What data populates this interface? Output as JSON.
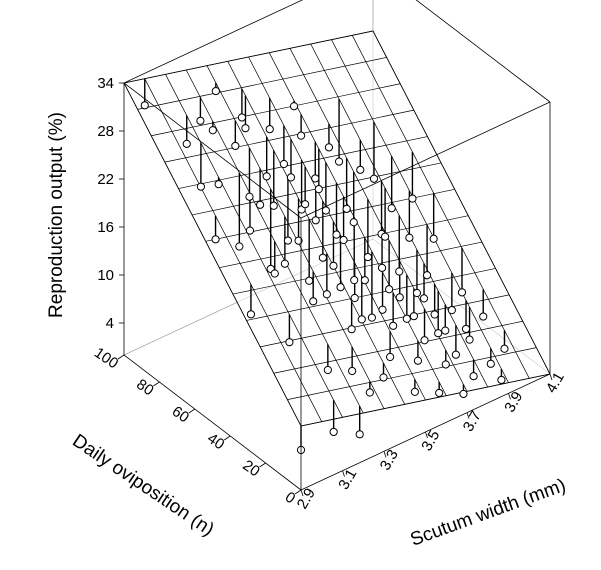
{
  "chart_data": {
    "type": "scatter",
    "subtype": "3d-scatter-with-fitted-plane",
    "title": "",
    "xlabel": "Scutum width (mm)",
    "ylabel": "Daily oviposition (n)",
    "zlabel": "Reproduction output (%)",
    "xlim": [
      2.9,
      4.1
    ],
    "ylim": [
      0,
      100
    ],
    "zlim": [
      0,
      34
    ],
    "x_ticks": [
      "2.9",
      "3.1",
      "3.3",
      "3.5",
      "3.7",
      "3.9",
      "4.1"
    ],
    "y_ticks": [
      "0",
      "20",
      "40",
      "60",
      "80",
      "100"
    ],
    "z_ticks": [
      "4",
      "10",
      "16",
      "22",
      "28",
      "34"
    ],
    "grid": true,
    "box": true,
    "fit_surface": {
      "type": "plane",
      "note_values": "z at (2.9,100)=34, (4.1,100)=20, (2.9,0)=8, (4.1,0)=0",
      "grid_divisions": [
        12,
        13
      ]
    },
    "points": [
      [
        3.0,
        100,
        30
      ],
      [
        3.3,
        95,
        29
      ],
      [
        3.4,
        92,
        25
      ],
      [
        3.4,
        90,
        24
      ],
      [
        3.5,
        88,
        23
      ],
      [
        3.2,
        85,
        27
      ],
      [
        3.3,
        84,
        24
      ],
      [
        3.6,
        82,
        22
      ],
      [
        3.1,
        80,
        22
      ],
      [
        3.5,
        80,
        20
      ],
      [
        3.7,
        78,
        20
      ],
      [
        3.3,
        76,
        19
      ],
      [
        3.4,
        74,
        17
      ],
      [
        3.6,
        74,
        18
      ],
      [
        3.8,
        72,
        17
      ],
      [
        3.2,
        70,
        15
      ],
      [
        3.5,
        70,
        16
      ],
      [
        3.7,
        68,
        14
      ],
      [
        3.4,
        66,
        14
      ],
      [
        3.9,
        66,
        12
      ],
      [
        3.3,
        64,
        12
      ],
      [
        3.6,
        62,
        13
      ],
      [
        3.8,
        60,
        11
      ],
      [
        3.5,
        58,
        12
      ],
      [
        3.7,
        56,
        10
      ],
      [
        3.4,
        54,
        11
      ],
      [
        4.0,
        54,
        9
      ],
      [
        3.6,
        52,
        9
      ],
      [
        3.8,
        50,
        8
      ],
      [
        3.5,
        48,
        10
      ],
      [
        3.9,
        46,
        7
      ],
      [
        3.7,
        44,
        8
      ],
      [
        3.6,
        42,
        6
      ],
      [
        3.8,
        40,
        7
      ],
      [
        4.0,
        38,
        5
      ],
      [
        3.5,
        36,
        8
      ],
      [
        3.7,
        34,
        6
      ],
      [
        3.9,
        32,
        5
      ],
      [
        3.6,
        30,
        7
      ],
      [
        3.8,
        28,
        4
      ],
      [
        4.0,
        26,
        4
      ],
      [
        3.7,
        24,
        5
      ],
      [
        3.9,
        22,
        3
      ],
      [
        3.5,
        20,
        6
      ],
      [
        3.8,
        18,
        3
      ],
      [
        3.6,
        16,
        5
      ],
      [
        4.0,
        14,
        2
      ],
      [
        3.7,
        12,
        4
      ],
      [
        3.9,
        10,
        2
      ],
      [
        3.3,
        8,
        6
      ],
      [
        3.1,
        5,
        4
      ],
      [
        3.2,
        2,
        3
      ],
      [
        2.9,
        0,
        5
      ],
      [
        3.0,
        60,
        20
      ],
      [
        3.1,
        70,
        24
      ],
      [
        3.2,
        50,
        15
      ],
      [
        3.3,
        40,
        12
      ],
      [
        3.4,
        30,
        9
      ],
      [
        3.5,
        62,
        16
      ],
      [
        3.6,
        86,
        25
      ],
      [
        3.2,
        92,
        27
      ],
      [
        3.4,
        78,
        20
      ],
      [
        3.5,
        68,
        17
      ],
      [
        3.6,
        58,
        13
      ],
      [
        3.7,
        48,
        10
      ],
      [
        3.8,
        36,
        7
      ],
      [
        3.9,
        56,
        10
      ],
      [
        4.0,
        66,
        12
      ],
      [
        3.9,
        76,
        14
      ],
      [
        3.8,
        84,
        16
      ],
      [
        3.0,
        40,
        14
      ],
      [
        3.1,
        30,
        11
      ],
      [
        3.2,
        20,
        8
      ],
      [
        3.3,
        18,
        7
      ],
      [
        3.4,
        12,
        6
      ],
      [
        3.5,
        6,
        4
      ],
      [
        3.6,
        4,
        3
      ],
      [
        3.7,
        2,
        2
      ],
      [
        3.8,
        8,
        2
      ],
      [
        3.9,
        4,
        1
      ],
      [
        3.3,
        70,
        19
      ],
      [
        3.4,
        60,
        15
      ],
      [
        3.5,
        52,
        12
      ],
      [
        3.6,
        46,
        10
      ],
      [
        3.7,
        38,
        8
      ],
      [
        3.8,
        30,
        6
      ],
      [
        3.9,
        24,
        4
      ],
      [
        3.4,
        44,
        11
      ],
      [
        3.5,
        40,
        10
      ],
      [
        3.6,
        36,
        8
      ],
      [
        3.7,
        30,
        7
      ],
      [
        3.8,
        24,
        5
      ],
      [
        3.6,
        68,
        15
      ],
      [
        3.7,
        64,
        13
      ],
      [
        3.8,
        58,
        11
      ],
      [
        3.5,
        76,
        19
      ],
      [
        3.6,
        72,
        17
      ],
      [
        3.3,
        56,
        14
      ],
      [
        3.2,
        64,
        18
      ],
      [
        3.1,
        88,
        26
      ]
    ]
  }
}
